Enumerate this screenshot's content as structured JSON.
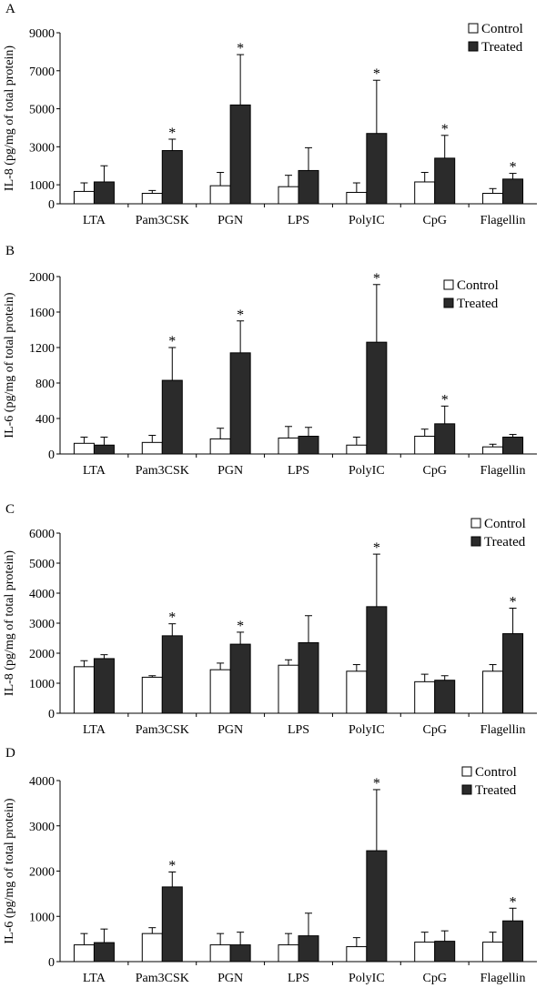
{
  "chart_data": [
    {
      "type": "bar",
      "panel_label": "A",
      "ylabel": "IL-8 (pg/mg of total protein)",
      "ylim": [
        0,
        9000
      ],
      "yticks": [
        "9000",
        "7000",
        "5000",
        "3000",
        "1000",
        "0"
      ],
      "ytick_values": [
        9000,
        7000,
        5000,
        3000,
        1000,
        0
      ],
      "categories": [
        "LTA",
        "Pam3CSK",
        "PGN",
        "LPS",
        "PolyIC",
        "CpG",
        "Flagellin"
      ],
      "series": [
        {
          "name": "Control",
          "color": "#ffffff",
          "values": [
            650,
            550,
            950,
            900,
            600,
            1150,
            550
          ],
          "errors": [
            450,
            150,
            700,
            600,
            500,
            500,
            250
          ]
        },
        {
          "name": "Treated",
          "color": "#2b2b2b",
          "values": [
            1150,
            2800,
            5200,
            1750,
            3700,
            2400,
            1300
          ],
          "errors": [
            850,
            600,
            2650,
            1200,
            2800,
            1200,
            300
          ]
        }
      ],
      "significance": [
        "",
        "*",
        "*",
        "",
        "*",
        "*",
        "*"
      ],
      "legend_position": "top-right"
    },
    {
      "type": "bar",
      "panel_label": "B",
      "ylabel": "IL-6 (pg/mg of total protein)",
      "ylim": [
        0,
        2000
      ],
      "yticks": [
        "2000",
        "1600",
        "1200",
        "800",
        "400",
        "0"
      ],
      "ytick_values": [
        2000,
        1600,
        1200,
        800,
        400,
        0
      ],
      "categories": [
        "LTA",
        "Pam3CSK",
        "PGN",
        "LPS",
        "PolyIC",
        "CpG",
        "Flagellin"
      ],
      "series": [
        {
          "name": "Control",
          "color": "#ffffff",
          "values": [
            120,
            130,
            170,
            180,
            100,
            200,
            80
          ],
          "errors": [
            70,
            80,
            120,
            130,
            90,
            80,
            30
          ]
        },
        {
          "name": "Treated",
          "color": "#2b2b2b",
          "values": [
            100,
            830,
            1140,
            200,
            1260,
            340,
            190
          ],
          "errors": [
            90,
            370,
            360,
            100,
            650,
            200,
            30
          ]
        }
      ],
      "significance": [
        "",
        "*",
        "*",
        "",
        "*",
        "*",
        ""
      ],
      "legend_position": "top-right"
    },
    {
      "type": "bar",
      "panel_label": "C",
      "ylabel": "IL-8 (pg/mg of total protein)",
      "ylim": [
        0,
        6000
      ],
      "yticks": [
        "6000",
        "5000",
        "4000",
        "3000",
        "2000",
        "1000",
        "0"
      ],
      "ytick_values": [
        6000,
        5000,
        4000,
        3000,
        2000,
        1000,
        0
      ],
      "categories": [
        "LTA",
        "Pam3CSK",
        "PGN",
        "LPS",
        "PolyIC",
        "CpG",
        "Flagellin"
      ],
      "series": [
        {
          "name": "Control",
          "color": "#ffffff",
          "values": [
            1550,
            1200,
            1450,
            1600,
            1400,
            1050,
            1400
          ],
          "errors": [
            200,
            50,
            220,
            180,
            220,
            250,
            220
          ]
        },
        {
          "name": "Treated",
          "color": "#2b2b2b",
          "values": [
            1820,
            2580,
            2300,
            2350,
            3550,
            1100,
            2650
          ],
          "errors": [
            130,
            400,
            400,
            900,
            1750,
            150,
            850
          ]
        }
      ],
      "significance": [
        "",
        "*",
        "*",
        "",
        "*",
        "",
        "*"
      ],
      "legend_position": "top-right"
    },
    {
      "type": "bar",
      "panel_label": "D",
      "ylabel": "IL-6 (pg/mg of total protein)",
      "ylim": [
        0,
        4000
      ],
      "yticks": [
        "4000",
        "3000",
        "2000",
        "1000",
        "0"
      ],
      "ytick_values": [
        4000,
        3000,
        2000,
        1000,
        0
      ],
      "categories": [
        "LTA",
        "Pam3CSK",
        "PGN",
        "LPS",
        "PolyIC",
        "CpG",
        "Flagellin"
      ],
      "series": [
        {
          "name": "Control",
          "color": "#ffffff",
          "values": [
            370,
            620,
            370,
            370,
            330,
            430,
            430
          ],
          "errors": [
            250,
            130,
            250,
            250,
            200,
            220,
            220
          ]
        },
        {
          "name": "Treated",
          "color": "#2b2b2b",
          "values": [
            420,
            1650,
            370,
            570,
            2450,
            450,
            900
          ],
          "errors": [
            300,
            330,
            280,
            500,
            1350,
            230,
            280
          ]
        }
      ],
      "significance": [
        "",
        "*",
        "",
        "",
        "*",
        "",
        "*"
      ],
      "legend_position": "top-right"
    }
  ]
}
